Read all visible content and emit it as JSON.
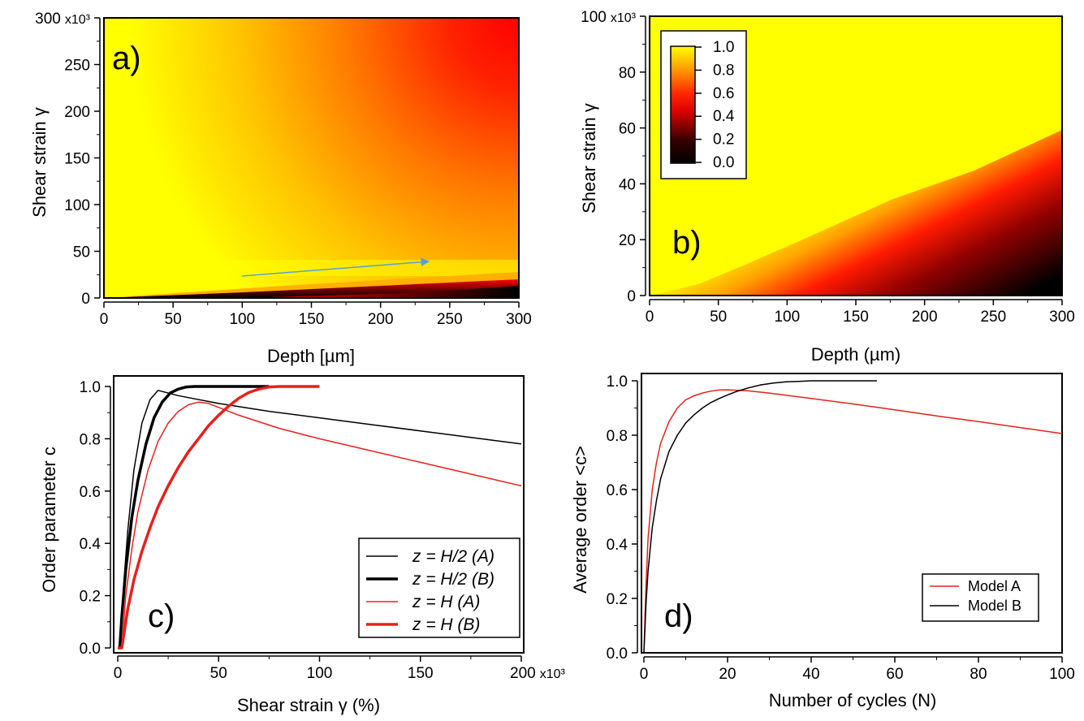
{
  "colors": {
    "yellow": "#ffff00",
    "orange": "#ff9a00",
    "red": "#ff0000",
    "black": "#000000",
    "arrow": "#5aa0d8",
    "line_red": "#e8201c",
    "line_black": "#000000"
  },
  "chart_data": [
    {
      "panel": "a",
      "panel_label": "a)",
      "type": "heatmap",
      "xlabel": "Depth [µm]",
      "ylabel": "Shear strain  γ",
      "xlim": [
        0,
        300
      ],
      "ylim": [
        0,
        300000
      ],
      "xticks": [
        "0",
        "50",
        "100",
        "150",
        "200",
        "250",
        "300"
      ],
      "yticks": [
        "0",
        "50",
        "100",
        "150",
        "200",
        "250",
        "300 x10³"
      ],
      "annotation": "arrow from (100, 23000) to (235, 39000)"
    },
    {
      "panel": "b",
      "panel_label": "b)",
      "type": "heatmap",
      "xlabel": "Depth (µm)",
      "ylabel": "Shear strain  γ",
      "xlim": [
        0,
        300
      ],
      "ylim": [
        0,
        100000
      ],
      "xticks": [
        "0",
        "50",
        "100",
        "150",
        "200",
        "250",
        "300"
      ],
      "yticks": [
        "0",
        "20",
        "40",
        "60",
        "80",
        "100 x10³"
      ],
      "colorbar": {
        "min": 0.0,
        "max": 1.0,
        "ticks": [
          "1.0",
          "0.8",
          "0.6",
          "0.4",
          "0.2",
          "0.0"
        ]
      }
    },
    {
      "panel": "c",
      "panel_label": "c)",
      "type": "line",
      "xlabel": "Shear strain γ (%)",
      "ylabel": "Order parameter c",
      "xlim": [
        0,
        200000
      ],
      "ylim": [
        0,
        1.0
      ],
      "xticks": [
        "0",
        "50",
        "100",
        "150",
        "200 x10³"
      ],
      "yticks": [
        "0.0",
        "0.2",
        "0.4",
        "0.6",
        "0.8",
        "1.0"
      ],
      "series": [
        {
          "name": "z = H/2 (A)",
          "color": "#000000",
          "width": 1.5,
          "x": [
            0,
            1,
            3,
            5,
            8,
            12,
            16,
            20,
            30,
            50,
            75,
            100,
            125,
            150,
            175,
            200
          ],
          "y": [
            0,
            0,
            0.25,
            0.45,
            0.68,
            0.86,
            0.95,
            0.985,
            0.965,
            0.935,
            0.905,
            0.88,
            0.855,
            0.83,
            0.805,
            0.78
          ]
        },
        {
          "name": "z = H/2 (B)",
          "color": "#000000",
          "width": 3.5,
          "x": [
            0,
            1,
            2,
            4,
            7,
            10,
            14,
            18,
            22,
            26,
            30,
            34,
            38,
            50,
            60,
            75
          ],
          "y": [
            0,
            0,
            0.12,
            0.3,
            0.5,
            0.64,
            0.78,
            0.88,
            0.94,
            0.975,
            0.99,
            0.998,
            1.0,
            1.0,
            1.0,
            1.0
          ]
        },
        {
          "name": "z = H (A)",
          "color": "#e8201c",
          "width": 1.5,
          "x": [
            0,
            2,
            4,
            7,
            10,
            15,
            20,
            25,
            30,
            35,
            40,
            45,
            60,
            80,
            100,
            125,
            150,
            175,
            200
          ],
          "y": [
            0,
            0,
            0.2,
            0.38,
            0.52,
            0.68,
            0.79,
            0.86,
            0.905,
            0.93,
            0.94,
            0.935,
            0.89,
            0.84,
            0.8,
            0.755,
            0.71,
            0.665,
            0.62
          ]
        },
        {
          "name": "z = H (B)",
          "color": "#e8201c",
          "width": 3.5,
          "x": [
            0,
            2,
            3,
            5,
            8,
            12,
            16,
            20,
            25,
            30,
            35,
            40,
            45,
            50,
            55,
            60,
            65,
            70,
            75,
            80,
            90,
            100
          ],
          "y": [
            0,
            0,
            0.05,
            0.15,
            0.26,
            0.37,
            0.46,
            0.54,
            0.62,
            0.69,
            0.75,
            0.8,
            0.85,
            0.89,
            0.925,
            0.955,
            0.977,
            0.99,
            0.998,
            1.0,
            1.0,
            1.0
          ]
        }
      ]
    },
    {
      "panel": "d",
      "panel_label": "d)",
      "type": "line",
      "xlabel": "Number of cycles (N)",
      "ylabel": "Average order  <c>",
      "xlim": [
        0,
        100
      ],
      "ylim": [
        0,
        1.0
      ],
      "xticks": [
        "0",
        "20",
        "40",
        "60",
        "80",
        "100"
      ],
      "yticks": [
        "0.0",
        "0.2",
        "0.4",
        "0.6",
        "0.8",
        "1.0"
      ],
      "series": [
        {
          "name": "Model A",
          "color": "#e8201c",
          "width": 1.5,
          "x": [
            0,
            0.5,
            1,
            2,
            3,
            4,
            6,
            8,
            10,
            12,
            14,
            16,
            18,
            20,
            25,
            30,
            40,
            50,
            60,
            70,
            80,
            90,
            100
          ],
          "y": [
            0,
            0.25,
            0.42,
            0.6,
            0.7,
            0.77,
            0.85,
            0.9,
            0.93,
            0.945,
            0.955,
            0.962,
            0.966,
            0.967,
            0.963,
            0.955,
            0.935,
            0.915,
            0.893,
            0.871,
            0.85,
            0.828,
            0.806
          ]
        },
        {
          "name": "Model B",
          "color": "#000000",
          "width": 1.5,
          "x": [
            0,
            0.5,
            1,
            2,
            3,
            4,
            6,
            8,
            10,
            12,
            14,
            16,
            18,
            20,
            22,
            25,
            28,
            31,
            34,
            37,
            40,
            45,
            50,
            55.7
          ],
          "y": [
            0,
            0.18,
            0.3,
            0.46,
            0.56,
            0.64,
            0.74,
            0.8,
            0.845,
            0.875,
            0.9,
            0.92,
            0.935,
            0.948,
            0.96,
            0.974,
            0.985,
            0.992,
            0.996,
            0.998,
            1.0,
            1.0,
            1.0,
            1.0
          ]
        }
      ]
    }
  ]
}
